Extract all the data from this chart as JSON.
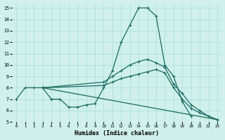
{
  "xlabel": "Humidex (Indice chaleur)",
  "bg_color": "#cff0eb",
  "grid_color": "#aaddd8",
  "line_color": "#1a6b5e",
  "xlim": [
    -0.5,
    23.5
  ],
  "ylim": [
    5,
    15.4
  ],
  "xticks": [
    0,
    1,
    2,
    3,
    4,
    5,
    6,
    7,
    8,
    9,
    10,
    11,
    12,
    13,
    14,
    15,
    16,
    17,
    18,
    19,
    20,
    21,
    22,
    23
  ],
  "yticks": [
    5,
    6,
    7,
    8,
    9,
    10,
    11,
    12,
    13,
    14,
    15
  ],
  "line1_x": [
    0,
    1,
    2,
    3,
    4,
    5,
    6,
    7,
    8,
    9,
    10,
    11,
    12,
    13,
    14,
    15,
    16,
    17,
    18,
    19,
    20
  ],
  "line1_y": [
    7,
    8,
    8,
    8,
    7,
    7.0,
    6.3,
    6.3,
    6.5,
    6.6,
    8.0,
    9.5,
    12.0,
    13.5,
    15.0,
    15.0,
    14.3,
    10.0,
    9.0,
    6.8,
    5.5
  ],
  "line2_x": [
    3,
    10,
    11,
    12,
    13,
    14,
    15,
    16,
    17,
    18,
    19,
    20,
    21,
    22,
    23
  ],
  "line2_y": [
    8,
    8.5,
    9.0,
    9.5,
    10.0,
    10.3,
    10.5,
    10.2,
    9.8,
    8.3,
    7.5,
    6.5,
    6.0,
    5.5,
    5.2
  ],
  "line3_x": [
    3,
    10,
    11,
    12,
    13,
    14,
    15,
    16,
    17,
    18,
    19,
    20,
    21,
    22,
    23
  ],
  "line3_y": [
    8,
    8.2,
    8.5,
    8.8,
    9.0,
    9.2,
    9.4,
    9.6,
    9.3,
    8.0,
    7.0,
    6.2,
    5.8,
    5.5,
    5.2
  ],
  "line4_x": [
    3,
    23
  ],
  "line4_y": [
    8,
    5.2
  ]
}
